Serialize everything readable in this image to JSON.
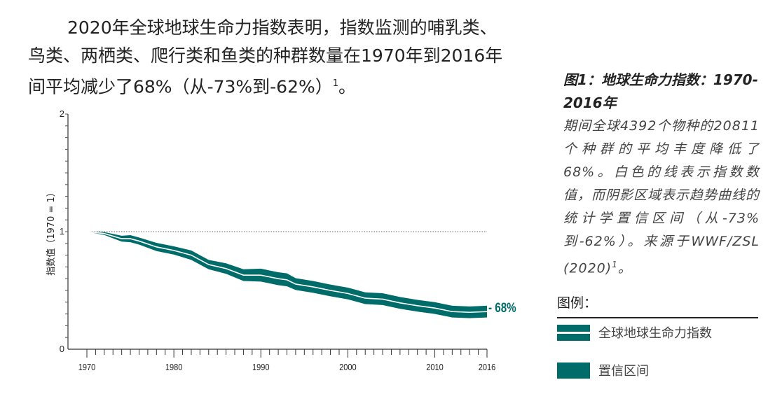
{
  "intro": "2020年全球地球生命力指数表明，指数监测的哺乳类、鸟类、两栖类、爬行类和鱼类的种群数量在1970年到2016年间平均减少了68%（从-73%到-62%）",
  "intro_sup": "1",
  "intro_end": "。",
  "caption": {
    "title": "图1：地球生命力指数：1970-2016年",
    "body": "期间全球4392个物种的20811个种群的平均丰度降低了68%。白色的线表示指数数值，而阴影区域表示趋势曲线的统计学置信区间（从-73%到-62%）。来源于WWF/ZSL (2020)",
    "sup": "1",
    "end": "。"
  },
  "legend": {
    "title": "图例：",
    "items": [
      {
        "label": "全球地球生命力指数"
      },
      {
        "label": "置信区间"
      }
    ]
  },
  "colors": {
    "teal": "#006c6a",
    "line": "#ffffff"
  },
  "chart_data": {
    "type": "area",
    "title": "",
    "xlabel": "",
    "ylabel": "指数值（1970 = 1）",
    "xlim": [
      1970,
      2016
    ],
    "ylim": [
      0,
      2
    ],
    "x_tick_labels": [
      "1970",
      "1980",
      "1990",
      "2000",
      "2010",
      "2016"
    ],
    "y_tick_labels": [
      "0",
      "1",
      "2"
    ],
    "reference_line": 1,
    "end_label": "- 68%",
    "x": [
      1970,
      1972,
      1974,
      1975,
      1976,
      1978,
      1980,
      1982,
      1984,
      1986,
      1988,
      1990,
      1992,
      1993,
      1994,
      1996,
      1998,
      2000,
      2002,
      2004,
      2006,
      2008,
      2010,
      2012,
      2014,
      2016
    ],
    "series": [
      {
        "name": "全球地球生命力指数",
        "values": [
          1.0,
          0.984,
          0.94,
          0.94,
          0.92,
          0.87,
          0.84,
          0.8,
          0.72,
          0.686,
          0.63,
          0.63,
          0.6,
          0.59,
          0.554,
          0.53,
          0.5,
          0.474,
          0.434,
          0.426,
          0.394,
          0.37,
          0.35,
          0.32,
          0.314,
          0.32
        ]
      },
      {
        "name": "置信区间",
        "upper": [
          1.0,
          0.996,
          0.965,
          0.97,
          0.95,
          0.905,
          0.875,
          0.84,
          0.76,
          0.731,
          0.68,
          0.685,
          0.655,
          0.645,
          0.604,
          0.58,
          0.55,
          0.524,
          0.484,
          0.476,
          0.444,
          0.42,
          0.4,
          0.37,
          0.364,
          0.37
        ],
        "lower": [
          1.0,
          0.972,
          0.915,
          0.91,
          0.89,
          0.835,
          0.805,
          0.76,
          0.68,
          0.641,
          0.58,
          0.575,
          0.545,
          0.535,
          0.504,
          0.48,
          0.45,
          0.424,
          0.384,
          0.376,
          0.344,
          0.32,
          0.3,
          0.27,
          0.264,
          0.27
        ]
      }
    ]
  }
}
